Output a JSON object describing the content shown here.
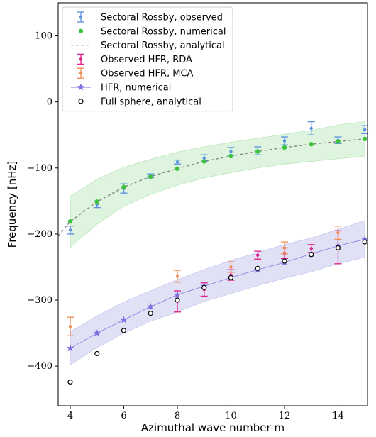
{
  "chart_data": {
    "type": "scatter",
    "xlabel": "Azimuthal wave number m",
    "ylabel": "Frequency [nHz]",
    "xlim": [
      3.55,
      15.1
    ],
    "ylim": [
      -460,
      150
    ],
    "xticks": [
      4,
      6,
      8,
      10,
      12,
      14
    ],
    "yticks": [
      100,
      0,
      -100,
      -200,
      -300,
      -400
    ],
    "ytick_labels": [
      "100",
      "0",
      "−100",
      "−200",
      "−300",
      "−400"
    ],
    "legend_position": "top-left",
    "colors": {
      "rossby_obs": "#5b8fe0",
      "rossby_num": "#3cc23c",
      "rossby_analytical": "#808080",
      "hfr_rda": "#e0208a",
      "hfr_mca": "#f08a55",
      "hfr_num": "#7b6fe0",
      "full_sphere": "#000000",
      "green_band": "#d9f2d9",
      "blue_band": "#dcdcf5"
    },
    "bands": [
      {
        "color_key": "green_band",
        "x": [
          4,
          5,
          6,
          7,
          8,
          9,
          10,
          11,
          12,
          13,
          14,
          15
        ],
        "lower": [
          -220,
          -185,
          -158,
          -140,
          -126,
          -115,
          -107,
          -100,
          -94,
          -90,
          -86,
          -82
        ],
        "upper": [
          -143,
          -117,
          -99,
          -87,
          -76,
          -68,
          -61,
          -55,
          -49,
          -43,
          -35,
          -30
        ]
      },
      {
        "color_key": "blue_band",
        "x": [
          4,
          5,
          6,
          7,
          8,
          9,
          10,
          11,
          12,
          13,
          14,
          15
        ],
        "lower": [
          -398,
          -372,
          -350,
          -332,
          -318,
          -302,
          -290,
          -278,
          -267,
          -257,
          -245,
          -235
        ],
        "upper": [
          -348,
          -324,
          -303,
          -286,
          -269,
          -254,
          -240,
          -228,
          -216,
          -206,
          -193,
          -180
        ]
      }
    ],
    "series": [
      {
        "name": "Sectoral Rossby, observed",
        "kind": "errorbar",
        "color_key": "rossby_obs",
        "x": [
          4,
          5,
          6,
          7,
          8,
          9,
          10,
          11,
          12,
          13,
          14,
          15
        ],
        "y": [
          -194,
          -155,
          -131,
          -112,
          -91,
          -85,
          -75,
          -74,
          -59,
          -40,
          -58,
          -42
        ],
        "err": [
          6,
          5,
          7,
          3,
          3,
          5,
          6,
          6,
          6,
          10,
          5,
          6
        ]
      },
      {
        "name": "Sectoral Rossby, numerical",
        "kind": "dot",
        "color_key": "rossby_num",
        "x": [
          4,
          5,
          6,
          7,
          8,
          9,
          10,
          11,
          12,
          13,
          14,
          15
        ],
        "y": [
          -181,
          -151,
          -129,
          -113,
          -101,
          -90,
          -82,
          -75,
          -69,
          -64,
          -60,
          -56
        ]
      },
      {
        "name": "Sectoral Rossby, analytical",
        "kind": "dashed-line",
        "color_key": "rossby_analytical",
        "x": [
          3.55,
          4,
          5,
          6,
          7,
          8,
          9,
          10,
          11,
          12,
          13,
          14,
          15,
          15.1
        ],
        "y": [
          -203,
          -181,
          -151,
          -129,
          -113,
          -101,
          -90,
          -82,
          -75,
          -69,
          -64,
          -60,
          -56,
          -55
        ]
      },
      {
        "name": "Observed HFR, RDA",
        "kind": "errorbar",
        "color_key": "hfr_rda",
        "x": [
          8,
          9,
          10,
          11,
          12,
          13,
          14
        ],
        "y": [
          -302,
          -284,
          -262,
          -232,
          -229,
          -222,
          -220
        ],
        "err": [
          16,
          10,
          8,
          6,
          8,
          6,
          25
        ]
      },
      {
        "name": "Observed HFR, MCA",
        "kind": "errorbar",
        "color_key": "hfr_mca",
        "x": [
          4,
          8,
          10,
          12,
          14
        ],
        "y": [
          -340,
          -264,
          -250,
          -221,
          -198
        ],
        "err": [
          14,
          9,
          8,
          9,
          10
        ]
      },
      {
        "name": "HFR, numerical",
        "kind": "star-line",
        "color_key": "hfr_num",
        "x": [
          4,
          5,
          6,
          7,
          8,
          9,
          10,
          11,
          12,
          13,
          14,
          15
        ],
        "y": [
          -373,
          -350,
          -330,
          -310,
          -292,
          -279,
          -266,
          -254,
          -243,
          -230,
          -218,
          -208
        ]
      },
      {
        "name": "Full sphere, analytical",
        "kind": "open-circle",
        "color_key": "full_sphere",
        "x": [
          4,
          5,
          6,
          7,
          8,
          9,
          10,
          11,
          12,
          13,
          14,
          15
        ],
        "y": [
          -424,
          -381,
          -346,
          -320,
          -300,
          -281,
          -266,
          -252,
          -241,
          -231,
          -221,
          -212
        ]
      }
    ]
  }
}
